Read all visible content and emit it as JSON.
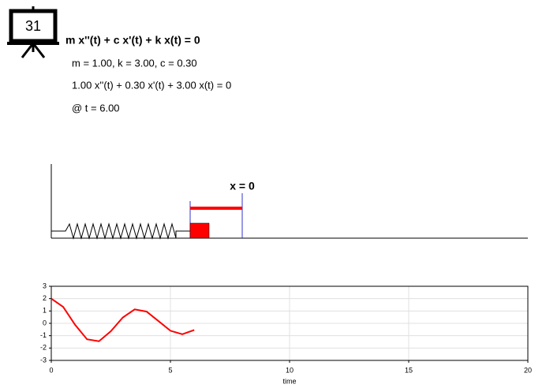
{
  "icon_label": "31",
  "equation": "m x''(t) + c x'(t) + k x(t) = 0",
  "params": "m = 1.00, k = 3.00, c = 0.30",
  "equation_numeric": "1.00 x''(t) + 0.30 x'(t) + 3.00 x(t) = 0",
  "time_label": "@ t = 6.00",
  "equilibrium_label": "x = 0",
  "chart_data": {
    "type": "line",
    "x_label": "time",
    "x": [
      0,
      0.5,
      1,
      1.5,
      2,
      2.5,
      3,
      3.5,
      4,
      4.5,
      5,
      5.5,
      6
    ],
    "series": [
      {
        "color": "#ff0000",
        "values": [
          2,
          1.33,
          -0.12,
          -1.29,
          -1.45,
          -0.64,
          0.47,
          1.13,
          0.95,
          0.18,
          -0.6,
          -0.88,
          -0.54
        ]
      }
    ],
    "xlim": [
      0,
      20
    ],
    "xticks": [
      0,
      5,
      10,
      15,
      20
    ],
    "ylim": [
      -3,
      3
    ],
    "yticks": [
      -3,
      -2,
      -1,
      0,
      1,
      2,
      3
    ],
    "grid": true
  }
}
